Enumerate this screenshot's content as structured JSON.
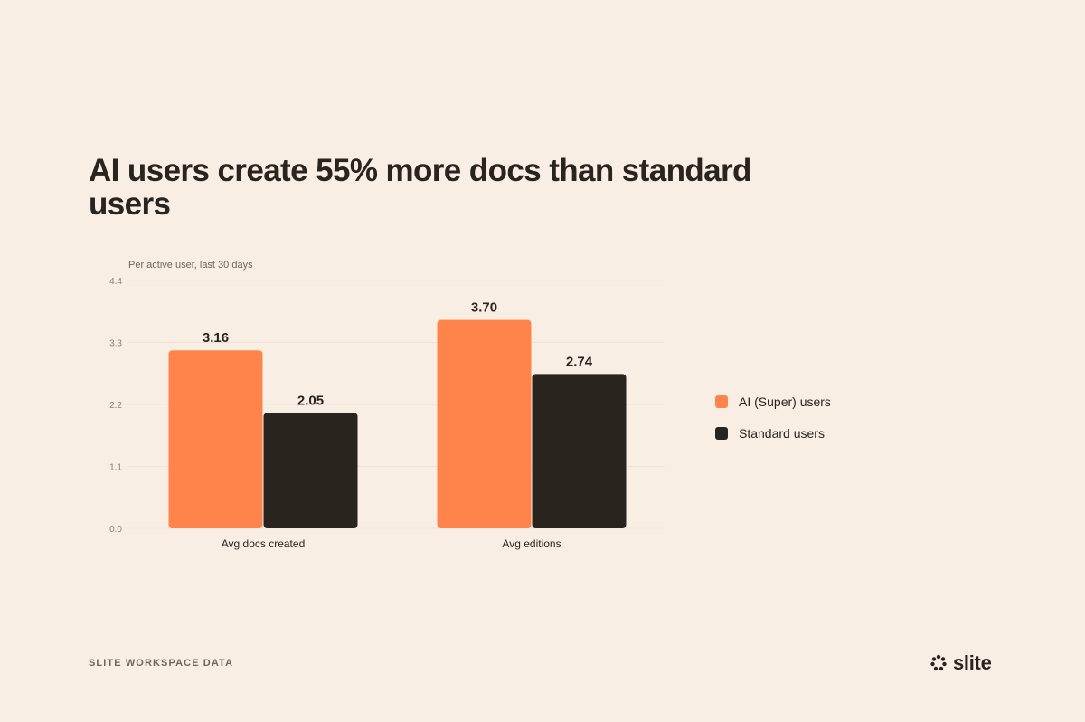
{
  "chart_data": {
    "type": "bar",
    "title": "AI users create 55% more docs than standard users",
    "subtitle": "Per active user, last 30 days",
    "categories": [
      "Avg docs created",
      "Avg editions"
    ],
    "series": [
      {
        "name": "AI (Super) users",
        "values": [
          3.16,
          3.7
        ],
        "labels": [
          "3.16",
          "3.70"
        ],
        "color": "#ff844c"
      },
      {
        "name": "Standard users",
        "values": [
          2.05,
          2.74
        ],
        "labels": [
          "2.05",
          "2.74"
        ],
        "color": "#2a241e"
      }
    ],
    "ylim": [
      0,
      4.4
    ],
    "yticks": [
      "0.0",
      "1.1",
      "2.2",
      "3.3",
      "4.4"
    ],
    "xlabel": "",
    "ylabel": "",
    "grid": true,
    "legend_position": "right"
  },
  "footer": {
    "source": "SLITE WORKSPACE DATA",
    "logo_text": "slite",
    "logo_icon": "slite-dots-icon"
  },
  "colors": {
    "background": "#f8eee4",
    "accent": "#ff844c",
    "dark": "#2a241e"
  }
}
